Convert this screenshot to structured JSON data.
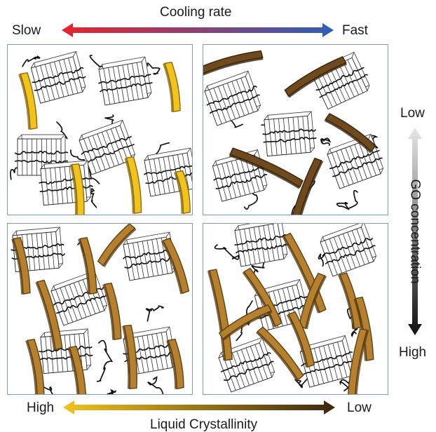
{
  "top_axis": {
    "title": "Cooling rate",
    "left_label": "Slow",
    "right_label": "Fast",
    "gradient_start": "#e8232c",
    "gradient_end": "#2f5fb8"
  },
  "bottom_axis": {
    "title": "Liquid Crystallinity",
    "left_label": "High",
    "right_label": "Low",
    "gradient_start": "#f2c31a",
    "gradient_end": "#3d2612"
  },
  "right_axis": {
    "title": "GO concentration",
    "top_label": "Low",
    "bottom_label": "High",
    "gradient_start": "#e6e6e6",
    "gradient_end": "#111111"
  },
  "panels": {
    "top_left": {
      "sheet_color": "#f2c31a",
      "sheet_edge": "#8a6a10"
    },
    "top_right": {
      "sheet_color": "#6e4a1e",
      "sheet_edge": "#3a2408"
    },
    "bottom_left": {
      "sheet_color": "#b5812e",
      "sheet_edge": "#5e3f12"
    },
    "bottom_right": {
      "sheet_color": "#b5812e",
      "sheet_edge": "#5e3f12"
    }
  }
}
